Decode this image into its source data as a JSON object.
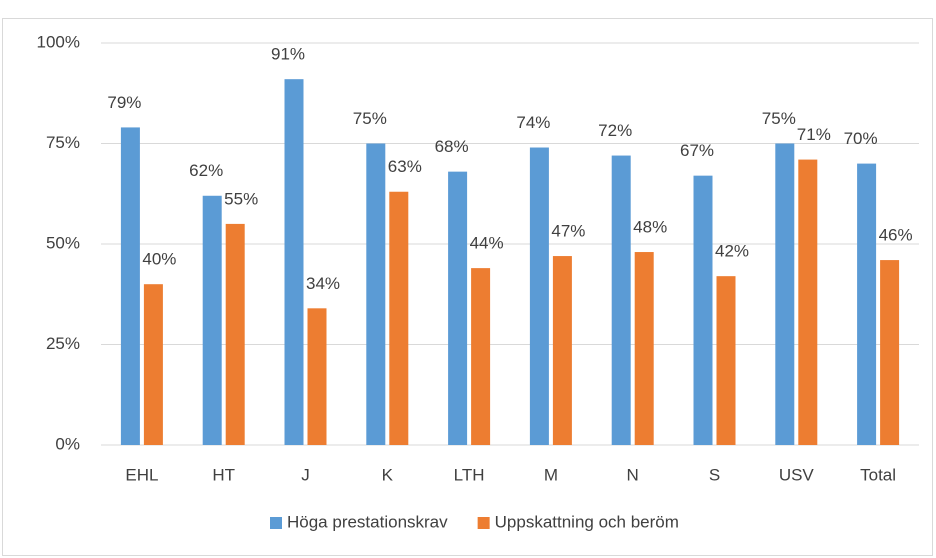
{
  "chart_data": {
    "type": "bar",
    "categories": [
      "EHL",
      "HT",
      "J",
      "K",
      "LTH",
      "M",
      "N",
      "S",
      "USV",
      "Total"
    ],
    "series": [
      {
        "name": "Höga prestationskrav",
        "color": "#5b9bd5",
        "values": [
          79,
          62,
          91,
          75,
          68,
          74,
          72,
          67,
          75,
          70
        ],
        "value_labels": [
          "79%",
          "62%",
          "91%",
          "75%",
          "68%",
          "74%",
          "72%",
          "67%",
          "75%",
          "70%"
        ]
      },
      {
        "name": "Uppskattning och beröm",
        "color": "#ed7d31",
        "values": [
          40,
          55,
          34,
          63,
          44,
          47,
          48,
          42,
          71,
          46
        ],
        "value_labels": [
          "40%",
          "55%",
          "34%",
          "63%",
          "44%",
          "47%",
          "48%",
          "42%",
          "71%",
          "46%"
        ]
      }
    ],
    "ylim": [
      0,
      100
    ],
    "yticks": [
      {
        "value": 0,
        "label": "0%"
      },
      {
        "value": 25,
        "label": "25%"
      },
      {
        "value": 50,
        "label": "50%"
      },
      {
        "value": 75,
        "label": "75%"
      },
      {
        "value": 100,
        "label": "100%"
      }
    ],
    "grid": true,
    "legend": "bottom"
  }
}
